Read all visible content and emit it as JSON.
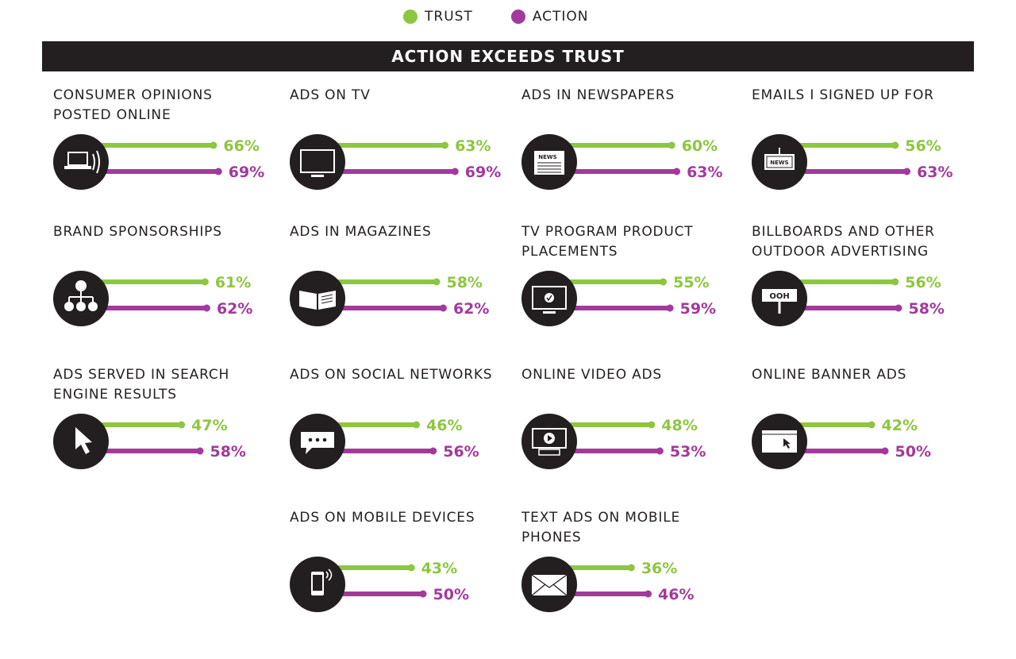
{
  "colors": {
    "trust": "#8dc63f",
    "action": "#a3399c",
    "dark": "#231f20"
  },
  "legend": [
    {
      "label": "TRUST",
      "color": "#8dc63f"
    },
    {
      "label": "ACTION",
      "color": "#a3399c"
    }
  ],
  "banner": {
    "title": "ACTION EXCEEDS TRUST"
  },
  "chart_data": {
    "type": "bar",
    "title": "ACTION EXCEEDS TRUST",
    "series_names": [
      "TRUST",
      "ACTION"
    ],
    "items": [
      {
        "label": "CONSUMER OPINIONS POSTED ONLINE",
        "icon": "laptop-icon",
        "trust": 66,
        "action": 69
      },
      {
        "label": "ADS ON TV",
        "icon": "tv-icon",
        "trust": 63,
        "action": 69
      },
      {
        "label": "ADS IN NEWSPAPERS",
        "icon": "newspaper-icon",
        "icon_text": "NEWS",
        "trust": 60,
        "action": 63
      },
      {
        "label": "EMAILS I SIGNED UP FOR",
        "icon": "news-email-icon",
        "icon_text": "NEWS",
        "trust": 56,
        "action": 63
      },
      {
        "label": "BRAND SPONSORSHIPS",
        "icon": "sponsorship-tree-icon",
        "trust": 61,
        "action": 62
      },
      {
        "label": "ADS IN MAGAZINES",
        "icon": "magazine-icon",
        "trust": 58,
        "action": 62
      },
      {
        "label": "TV PROGRAM PRODUCT PLACEMENTS",
        "icon": "tv-check-icon",
        "trust": 55,
        "action": 59
      },
      {
        "label": "BILLBOARDS AND OTHER OUTDOOR ADVERTISING",
        "icon": "billboard-icon",
        "icon_text": "OOH",
        "trust": 56,
        "action": 58
      },
      {
        "label": "ADS SERVED IN SEARCH ENGINE RESULTS",
        "icon": "cursor-icon",
        "trust": 47,
        "action": 58
      },
      {
        "label": "ADS ON SOCIAL NETWORKS",
        "icon": "chat-bubble-icon",
        "trust": 46,
        "action": 56
      },
      {
        "label": "ONLINE VIDEO ADS",
        "icon": "video-play-icon",
        "trust": 48,
        "action": 53
      },
      {
        "label": "ONLINE BANNER ADS",
        "icon": "browser-cursor-icon",
        "trust": 42,
        "action": 50
      },
      {
        "label": "ADS ON MOBILE DEVICES",
        "icon": "mobile-phone-icon",
        "trust": 43,
        "action": 50
      },
      {
        "label": "TEXT ADS ON MOBILE PHONES",
        "icon": "envelope-icon",
        "trust": 36,
        "action": 46
      }
    ]
  }
}
